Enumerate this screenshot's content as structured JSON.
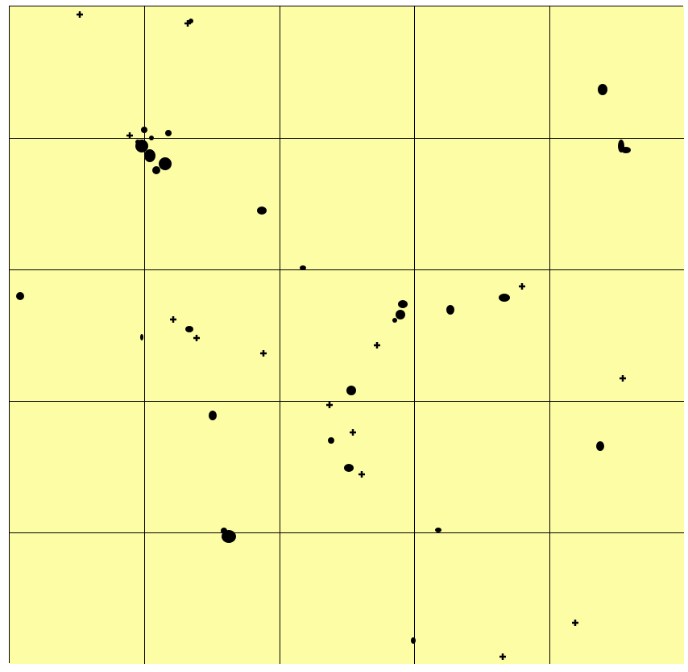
{
  "canvas": {
    "background": "#fdfda5",
    "grid_color": "#000000",
    "mark_color": "#000000",
    "grid_columns": 5,
    "grid_rows": 5
  }
}
